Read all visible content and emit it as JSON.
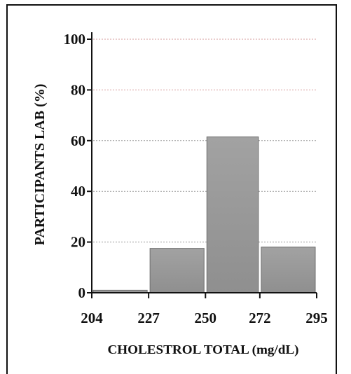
{
  "chart_data": {
    "type": "bar",
    "title": "",
    "xlabel": "CHOLESTROL TOTAL (mg/dL)",
    "ylabel": "PARTICIPANTS LAB  (%)",
    "x_ticks": [
      "204",
      "227",
      "250",
      "272",
      "295"
    ],
    "y_ticks": [
      "0",
      "20",
      "40",
      "60",
      "80",
      "100"
    ],
    "ylim": [
      0,
      100
    ],
    "bins": [
      {
        "from": 204,
        "to": 227,
        "value": 1
      },
      {
        "from": 227,
        "to": 250,
        "value": 17.5
      },
      {
        "from": 250,
        "to": 272,
        "value": 61.5
      },
      {
        "from": 272,
        "to": 295,
        "value": 18
      }
    ],
    "grid": true,
    "bar_color": "#9a9a9a",
    "grid_color_top": "#d08a8a",
    "grid_color": "#888888"
  }
}
